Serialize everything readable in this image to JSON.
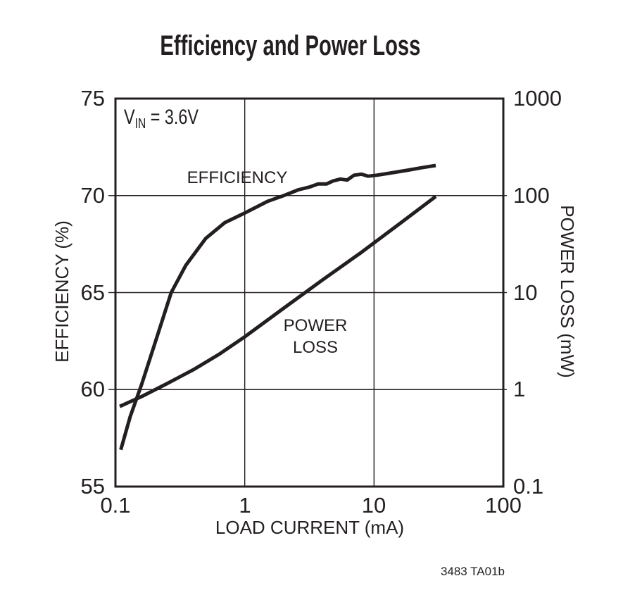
{
  "colors": {
    "ink": "#231f20",
    "background": "#ffffff"
  },
  "chart_data": {
    "type": "line",
    "title": "Efficiency and Power Loss",
    "annotation_parts": {
      "base": "V",
      "sub": "IN",
      "rest": " = 3.6V"
    },
    "caption": "3483 TA01b",
    "grid": true,
    "x_axis": {
      "label": "LOAD CURRENT (mA)",
      "scale": "log",
      "min": 0.1,
      "max": 100,
      "ticks": [
        {
          "v": 0.1,
          "label": "0.1"
        },
        {
          "v": 1,
          "label": "1"
        },
        {
          "v": 10,
          "label": "10"
        },
        {
          "v": 100,
          "label": "100"
        }
      ]
    },
    "y_left": {
      "label": "EFFICIENCY (%)",
      "scale": "linear",
      "min": 55,
      "max": 75,
      "ticks": [
        {
          "v": 75,
          "label": "75"
        },
        {
          "v": 70,
          "label": "70"
        },
        {
          "v": 65,
          "label": "65"
        },
        {
          "v": 60,
          "label": "60"
        },
        {
          "v": 55,
          "label": "55"
        }
      ]
    },
    "y_right": {
      "label": "POWER LOSS (mW)",
      "scale": "log",
      "min": 0.1,
      "max": 1000,
      "ticks": [
        {
          "v": 1000,
          "label": "1000"
        },
        {
          "v": 100,
          "label": "100"
        },
        {
          "v": 10,
          "label": "10"
        },
        {
          "v": 1,
          "label": "1"
        },
        {
          "v": 0.1,
          "label": "0.1"
        }
      ]
    },
    "series": [
      {
        "name": "EFFICIENCY",
        "axis": "left",
        "units": "%",
        "points": [
          [
            0.11,
            56.9
          ],
          [
            0.13,
            58.6
          ],
          [
            0.16,
            60.3
          ],
          [
            0.2,
            62.3
          ],
          [
            0.27,
            65.0
          ],
          [
            0.35,
            66.4
          ],
          [
            0.5,
            67.8
          ],
          [
            0.7,
            68.6
          ],
          [
            1.0,
            69.1
          ],
          [
            1.5,
            69.7
          ],
          [
            2.0,
            70.0
          ],
          [
            2.6,
            70.3
          ],
          [
            3.2,
            70.45
          ],
          [
            3.7,
            70.6
          ],
          [
            4.3,
            70.6
          ],
          [
            4.8,
            70.75
          ],
          [
            5.5,
            70.85
          ],
          [
            6.2,
            70.8
          ],
          [
            7.0,
            71.05
          ],
          [
            8.0,
            71.1
          ],
          [
            9.0,
            71.0
          ],
          [
            10.5,
            71.05
          ],
          [
            13.0,
            71.15
          ],
          [
            18.0,
            71.3
          ],
          [
            24.0,
            71.45
          ],
          [
            30.0,
            71.55
          ]
        ]
      },
      {
        "name": "POWER LOSS",
        "label_lines": [
          "POWER",
          "LOSS"
        ],
        "axis": "right",
        "units": "mW",
        "points": [
          [
            0.108,
            0.67
          ],
          [
            0.16,
            0.85
          ],
          [
            0.25,
            1.15
          ],
          [
            0.4,
            1.6
          ],
          [
            0.63,
            2.3
          ],
          [
            1.0,
            3.5
          ],
          [
            2.0,
            6.9
          ],
          [
            4.0,
            13.5
          ],
          [
            8.0,
            26.0
          ],
          [
            16.0,
            52.0
          ],
          [
            30.0,
            98.0
          ]
        ]
      }
    ]
  }
}
